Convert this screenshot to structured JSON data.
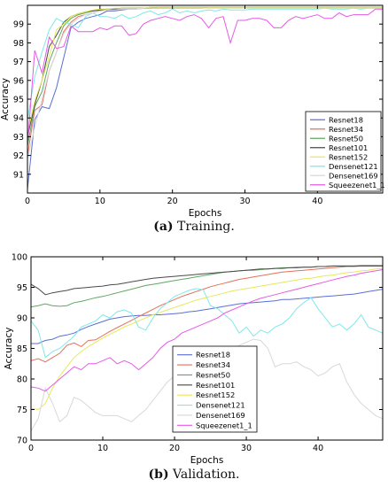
{
  "chart_data": [
    {
      "type": "line",
      "caption_tag": "(a)",
      "caption_text": "Training.",
      "xlabel": "Epochs",
      "ylabel": "Accuracy",
      "xlim": [
        0,
        49
      ],
      "ylim": [
        90,
        100
      ],
      "xticks": [
        "0",
        "10",
        "20",
        "30",
        "40"
      ],
      "yticks": [
        "91",
        "92",
        "93",
        "94",
        "95",
        "96",
        "97",
        "98",
        "99"
      ],
      "legend_position": "bottom-right",
      "grid": false,
      "series": [
        {
          "name": "Resnet18",
          "color": "#5b6fd6",
          "values": [
            90.2,
            93.9,
            94.6,
            94.5,
            95.6,
            97.2,
            98.8,
            99.1,
            99.3,
            99.4,
            99.5,
            99.7,
            99.7,
            99.75,
            99.8,
            99.8,
            99.85,
            99.85,
            99.85,
            99.85,
            99.85,
            99.85,
            99.85,
            99.85,
            99.85,
            99.9,
            99.9,
            99.9,
            99.9,
            99.9,
            99.9,
            99.9,
            99.9,
            99.9,
            99.9,
            99.9,
            99.9,
            99.9,
            99.9,
            99.9,
            99.9,
            99.9,
            99.9,
            99.9,
            99.9,
            99.9,
            99.9,
            99.9,
            99.9,
            99.9
          ]
        },
        {
          "name": "Resnet34",
          "color": "#e2705a",
          "values": [
            92.0,
            94.4,
            94.7,
            96.5,
            97.5,
            98.6,
            99.1,
            99.4,
            99.5,
            99.6,
            99.7,
            99.75,
            99.8,
            99.8,
            99.85,
            99.85,
            99.85,
            99.85,
            99.85,
            99.9,
            99.9,
            99.9,
            99.9,
            99.9,
            99.9,
            99.9,
            99.9,
            99.9,
            99.9,
            99.9,
            99.9,
            99.9,
            99.9,
            99.9,
            99.9,
            99.9,
            99.9,
            99.9,
            99.9,
            99.9,
            99.9,
            99.9,
            99.9,
            99.9,
            99.9,
            99.9,
            99.9,
            99.9,
            99.9,
            99.9
          ]
        },
        {
          "name": "Resnet50",
          "color": "#5fa85f",
          "values": [
            92.5,
            94.6,
            95.4,
            97.0,
            98.0,
            98.9,
            99.3,
            99.5,
            99.6,
            99.7,
            99.75,
            99.8,
            99.8,
            99.85,
            99.85,
            99.85,
            99.85,
            99.9,
            99.9,
            99.9,
            99.9,
            99.9,
            99.9,
            99.9,
            99.9,
            99.9,
            99.9,
            99.9,
            99.9,
            99.9,
            99.9,
            99.9,
            99.9,
            99.9,
            99.9,
            99.9,
            99.9,
            99.9,
            99.9,
            99.9,
            99.9,
            99.9,
            99.9,
            99.9,
            99.9,
            99.9,
            99.9,
            99.9,
            99.9,
            99.9
          ]
        },
        {
          "name": "Resnet101",
          "color": "#4a4a4a",
          "values": [
            93.0,
            94.7,
            96.0,
            97.8,
            98.4,
            99.1,
            99.4,
            99.55,
            99.65,
            99.7,
            99.75,
            99.8,
            99.8,
            99.85,
            99.85,
            99.85,
            99.85,
            99.85,
            99.9,
            99.9,
            99.9,
            99.9,
            99.9,
            99.9,
            99.9,
            99.9,
            99.9,
            99.9,
            99.9,
            99.9,
            99.9,
            99.9,
            99.9,
            99.9,
            99.9,
            99.9,
            99.9,
            99.9,
            99.9,
            99.9,
            99.9,
            99.9,
            99.9,
            99.9,
            99.9,
            99.9,
            99.9,
            99.9,
            99.9,
            99.9
          ]
        },
        {
          "name": "Resnet152",
          "color": "#e8e85a",
          "values": [
            93.2,
            94.9,
            96.0,
            97.3,
            98.7,
            99.0,
            99.4,
            99.55,
            99.65,
            99.75,
            99.8,
            99.8,
            99.85,
            99.85,
            99.85,
            99.85,
            99.85,
            99.9,
            99.9,
            99.9,
            99.9,
            99.9,
            99.9,
            99.9,
            99.9,
            99.9,
            99.9,
            99.9,
            99.9,
            99.9,
            99.9,
            99.9,
            99.9,
            99.9,
            99.9,
            99.9,
            99.9,
            99.9,
            99.9,
            99.9,
            99.9,
            99.9,
            99.9,
            99.9,
            99.9,
            99.9,
            99.9,
            99.9,
            99.9,
            99.9
          ]
        },
        {
          "name": "Densenet121",
          "color": "#7fe8e8",
          "values": [
            93.9,
            96.2,
            97.5,
            98.7,
            99.3,
            99.1,
            99.0,
            98.8,
            99.4,
            99.6,
            99.4,
            99.4,
            99.3,
            99.5,
            99.3,
            99.4,
            99.6,
            99.7,
            99.5,
            99.6,
            99.8,
            99.6,
            99.7,
            99.6,
            99.7,
            99.75,
            99.7,
            99.8,
            99.75,
            99.75,
            99.75,
            99.8,
            99.8,
            99.8,
            99.8,
            99.8,
            99.8,
            99.8,
            99.8,
            99.8,
            99.8,
            99.85,
            99.8,
            99.8,
            99.8,
            99.85,
            99.8,
            99.85,
            99.85,
            99.85
          ]
        },
        {
          "name": "Densenet169",
          "color": "#d8d8d8",
          "values": [
            91.8,
            93.5,
            95.0,
            96.5,
            97.5,
            98.5,
            99.0,
            99.3,
            99.5,
            99.6,
            99.7,
            99.75,
            99.75,
            99.8,
            99.8,
            99.8,
            99.85,
            99.85,
            99.85,
            99.85,
            99.85,
            99.85,
            99.85,
            99.85,
            99.85,
            99.85,
            99.85,
            99.85,
            99.85,
            99.85,
            99.85,
            99.85,
            99.85,
            99.85,
            99.85,
            99.85,
            99.85,
            99.85,
            99.85,
            99.85,
            99.85,
            99.85,
            99.85,
            99.85,
            99.85,
            99.85,
            99.85,
            99.85,
            99.85,
            99.85
          ]
        },
        {
          "name": "Squeezenet1_1",
          "color": "#e65ae6",
          "values": [
            92.5,
            97.6,
            96.4,
            98.3,
            97.7,
            97.8,
            98.9,
            98.6,
            98.6,
            98.6,
            98.8,
            98.7,
            98.9,
            98.9,
            98.4,
            98.5,
            99.0,
            99.2,
            99.3,
            99.4,
            99.3,
            99.2,
            99.4,
            99.5,
            99.3,
            98.8,
            99.3,
            99.4,
            98.0,
            99.2,
            99.2,
            99.3,
            99.3,
            99.2,
            98.8,
            98.8,
            99.2,
            99.4,
            99.3,
            99.4,
            99.5,
            99.3,
            99.3,
            99.6,
            99.4,
            99.5,
            99.5,
            99.5,
            99.8,
            99.8
          ]
        }
      ]
    },
    {
      "type": "line",
      "caption_tag": "(b)",
      "caption_text": "Validation.",
      "xlabel": "Epochs",
      "ylabel": "Accuracy",
      "xlim": [
        0,
        49
      ],
      "ylim": [
        70,
        100
      ],
      "xticks": [
        "0",
        "10",
        "20",
        "30",
        "40"
      ],
      "yticks": [
        "70",
        "75",
        "80",
        "85",
        "90",
        "95",
        "100"
      ],
      "legend_position": "center",
      "grid": false,
      "series": [
        {
          "name": "Resnet18",
          "color": "#5b6fd6",
          "values": [
            85.8,
            85.8,
            86.3,
            86.5,
            87.0,
            87.2,
            87.5,
            88.1,
            88.6,
            89.0,
            89.4,
            89.8,
            90.0,
            90.2,
            90.3,
            90.4,
            90.4,
            90.5,
            90.5,
            90.6,
            90.7,
            90.8,
            91.0,
            91.1,
            91.3,
            91.5,
            91.7,
            91.9,
            92.1,
            92.3,
            92.4,
            92.5,
            92.6,
            92.7,
            92.8,
            93.0,
            93.0,
            93.1,
            93.2,
            93.3,
            93.4,
            93.5,
            93.6,
            93.7,
            93.8,
            93.9,
            94.1,
            94.3,
            94.5,
            94.7
          ]
        },
        {
          "name": "Resnet34",
          "color": "#e2705a",
          "values": [
            83.0,
            83.3,
            82.8,
            83.5,
            84.2,
            85.5,
            85.9,
            85.3,
            86.3,
            86.4,
            87.1,
            87.8,
            88.4,
            89.0,
            89.6,
            90.2,
            90.8,
            91.4,
            92.0,
            92.5,
            93.0,
            93.5,
            93.9,
            94.3,
            94.7,
            95.1,
            95.4,
            95.7,
            96.0,
            96.3,
            96.5,
            96.7,
            96.9,
            97.1,
            97.3,
            97.5,
            97.6,
            97.7,
            97.8,
            97.9,
            98.0,
            98.1,
            98.2,
            98.3,
            98.4,
            98.4,
            98.5,
            98.5,
            98.5,
            98.5
          ]
        },
        {
          "name": "Resnet50",
          "color": "#5fa85f",
          "values": [
            91.8,
            92.0,
            92.3,
            92.0,
            91.9,
            92.0,
            92.5,
            92.7,
            93.0,
            93.3,
            93.5,
            93.8,
            94.1,
            94.4,
            94.7,
            95.0,
            95.3,
            95.5,
            95.7,
            95.9,
            96.1,
            96.3,
            96.5,
            96.7,
            96.9,
            97.1,
            97.3,
            97.5,
            97.6,
            97.7,
            97.8,
            97.8,
            97.9,
            98.0,
            98.1,
            98.2,
            98.2,
            98.3,
            98.3,
            98.3,
            98.4,
            98.4,
            98.5,
            98.5,
            98.5,
            98.5,
            98.6,
            98.6,
            98.6,
            98.6
          ]
        },
        {
          "name": "Resnet101",
          "color": "#4a4a4a",
          "values": [
            95.5,
            94.8,
            93.8,
            94.1,
            94.3,
            94.5,
            94.8,
            94.9,
            95.0,
            95.1,
            95.2,
            95.4,
            95.5,
            95.7,
            95.9,
            96.1,
            96.3,
            96.5,
            96.6,
            96.7,
            96.8,
            96.9,
            97.0,
            97.1,
            97.2,
            97.3,
            97.4,
            97.5,
            97.6,
            97.7,
            97.8,
            97.9,
            98.0,
            98.0,
            98.1,
            98.1,
            98.2,
            98.2,
            98.3,
            98.3,
            98.4,
            98.4,
            98.5,
            98.5,
            98.5,
            98.5,
            98.5,
            98.5,
            98.5,
            98.5
          ]
        },
        {
          "name": "Resnet152",
          "color": "#e8e85a",
          "values": [
            75.2,
            75.0,
            76.0,
            78.5,
            80.5,
            82.0,
            83.5,
            84.5,
            85.3,
            86.0,
            86.7,
            87.3,
            87.9,
            88.5,
            89.0,
            89.5,
            90.0,
            90.5,
            90.9,
            91.3,
            91.7,
            92.1,
            92.5,
            92.9,
            93.2,
            93.5,
            93.8,
            94.1,
            94.4,
            94.6,
            94.8,
            95.0,
            95.2,
            95.4,
            95.6,
            95.8,
            96.0,
            96.2,
            96.4,
            96.5,
            96.7,
            96.9,
            97.0,
            97.2,
            97.4,
            97.5,
            97.7,
            97.8,
            98.0,
            98.1
          ]
        },
        {
          "name": "Densenet121",
          "color": "#7fe8e8",
          "values": [
            89.5,
            88.0,
            83.5,
            84.5,
            85.0,
            86.0,
            87.0,
            88.5,
            89.0,
            89.5,
            90.5,
            90.0,
            91.0,
            91.3,
            90.8,
            88.5,
            88.0,
            90.0,
            91.5,
            92.5,
            93.5,
            94.0,
            94.5,
            94.8,
            94.6,
            92.0,
            91.5,
            90.5,
            89.5,
            87.5,
            88.5,
            87.0,
            88.0,
            87.5,
            88.5,
            89.0,
            90.0,
            91.5,
            92.5,
            93.3,
            91.5,
            90.0,
            88.5,
            89.0,
            88.0,
            89.0,
            90.5,
            88.5,
            88.0,
            87.5
          ]
        },
        {
          "name": "Densenet169",
          "color": "#d8d8d8",
          "values": [
            71.5,
            73.5,
            78.5,
            76.0,
            73.0,
            74.0,
            77.0,
            76.5,
            75.5,
            74.5,
            74.0,
            74.0,
            74.0,
            73.5,
            73.0,
            74.0,
            75.0,
            76.5,
            78.0,
            79.5,
            80.5,
            81.5,
            82.0,
            82.5,
            82.8,
            83.0,
            83.5,
            84.0,
            84.5,
            85.5,
            86.0,
            86.5,
            86.3,
            85.0,
            82.0,
            82.5,
            82.5,
            82.8,
            82.0,
            81.5,
            80.5,
            81.0,
            82.0,
            82.5,
            79.5,
            77.5,
            76.0,
            75.0,
            74.0,
            73.5
          ]
        },
        {
          "name": "Squeezenet1_1",
          "color": "#e65ae6",
          "values": [
            78.7,
            78.5,
            78.0,
            79.0,
            80.0,
            81.0,
            82.0,
            81.5,
            82.5,
            82.5,
            83.0,
            83.5,
            82.5,
            83.0,
            82.5,
            81.5,
            82.5,
            83.5,
            85.0,
            86.0,
            86.5,
            87.5,
            88.0,
            88.5,
            89.0,
            89.5,
            90.0,
            90.8,
            91.3,
            91.8,
            92.3,
            92.8,
            93.2,
            93.5,
            93.8,
            94.1,
            94.4,
            94.7,
            95.0,
            95.3,
            95.6,
            95.9,
            96.2,
            96.5,
            96.8,
            97.0,
            97.3,
            97.5,
            97.7,
            97.9
          ]
        }
      ]
    }
  ]
}
